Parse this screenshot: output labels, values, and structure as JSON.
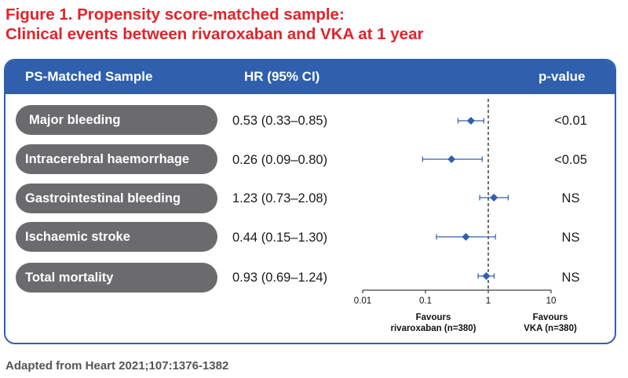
{
  "title": {
    "line1": "Figure 1. Propensity score-matched sample:",
    "line2": "Clinical events between rivaroxaban and VKA at 1 year"
  },
  "header": {
    "sample": "PS-Matched Sample",
    "hr": "HR (95% CI)",
    "pvalue": "p-value"
  },
  "colors": {
    "title": "#e3232a",
    "header_bg": "#2f5fad",
    "pill_bg": "#6b6b6e",
    "marker": "#2f5fad"
  },
  "rows": [
    {
      "label": "Major bleeding",
      "hr_text": "0.53 (0.33–0.85)",
      "p": "<0.01"
    },
    {
      "label": "Intracerebral haemorrhage",
      "hr_text": "0.26 (0.09–0.80)",
      "p": "<0.05"
    },
    {
      "label": "Gastrointestinal bleeding",
      "hr_text": "1.23 (0.73–2.08)",
      "p": "NS"
    },
    {
      "label": "Ischaemic stroke",
      "hr_text": "0.44 (0.15–1.30)",
      "p": "NS"
    },
    {
      "label": "Total mortality",
      "hr_text": "0.93 (0.69–1.24)",
      "p": "NS"
    }
  ],
  "chart_data": {
    "type": "forest",
    "x_scale": "log",
    "xlim": [
      0.01,
      10
    ],
    "reference_line": 1,
    "x_ticks": [
      "0.01",
      "0.1",
      "1",
      "10"
    ],
    "x_tick_values": [
      0.01,
      0.1,
      1,
      10
    ],
    "favours_left": {
      "line1": "Favours",
      "line2": "rivaroxaban (n=380)"
    },
    "favours_right": {
      "line1": "Favours",
      "line2": "VKA (n=380)"
    },
    "points": [
      {
        "label": "Major bleeding",
        "hr": 0.53,
        "lo": 0.33,
        "hi": 0.85
      },
      {
        "label": "Intracerebral haemorrhage",
        "hr": 0.26,
        "lo": 0.09,
        "hi": 0.8
      },
      {
        "label": "Gastrointestinal bleeding",
        "hr": 1.23,
        "lo": 0.73,
        "hi": 2.08
      },
      {
        "label": "Ischaemic stroke",
        "hr": 0.44,
        "lo": 0.15,
        "hi": 1.3
      },
      {
        "label": "Total mortality",
        "hr": 0.93,
        "lo": 0.69,
        "hi": 1.24
      }
    ]
  },
  "footer": "Adapted from Heart 2021;107:1376-1382"
}
